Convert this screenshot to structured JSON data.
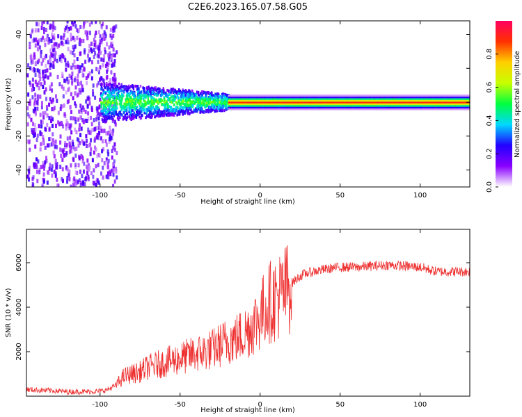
{
  "title": "C2E6.2023.165.07.58.G05",
  "chart_data": [
    {
      "type": "heatmap",
      "xlabel": "Height of straight line (km)",
      "ylabel": "Frequency (Hz)",
      "xlim": [
        -146,
        131
      ],
      "ylim": [
        -50,
        48
      ],
      "x_ticks": [
        -100,
        -50,
        0,
        50,
        100
      ],
      "y_ticks": [
        -40,
        -20,
        0,
        20,
        40
      ],
      "colorbar": {
        "label": "Normalized spectral amplitude",
        "range": [
          0,
          1
        ],
        "ticks": [
          "0.0",
          "0.2",
          "0.4",
          "0.6",
          "0.8"
        ],
        "colors": [
          "#ffffff",
          "#8a00ff",
          "#2200ff",
          "#00d8ff",
          "#00ff40",
          "#c8ff00",
          "#ffd000",
          "#ff3000",
          "#ff0060"
        ]
      },
      "description_regions": [
        {
          "x_range": [
            -146,
            -100
          ],
          "freq_spread": [
            -50,
            48
          ],
          "amplitude": 0.15
        },
        {
          "x_range": [
            -100,
            -20
          ],
          "freq_spread": [
            -12,
            10
          ],
          "amplitude": 0.35
        },
        {
          "x_range": [
            -20,
            131
          ],
          "freq_spread": [
            -4,
            4
          ],
          "amplitude": 0.9
        }
      ]
    },
    {
      "type": "line",
      "xlabel": "Height of straight line (km)",
      "ylabel": "SNR (10 * v/v)",
      "xlim": [
        -146,
        131
      ],
      "ylim": [
        0,
        7500
      ],
      "x_ticks": [
        -100,
        -50,
        0,
        50,
        100
      ],
      "y_ticks": [
        2000,
        4000,
        6000
      ],
      "series": [
        {
          "color": "#ee3030",
          "x": [
            -146,
            -130,
            -120,
            -110,
            -100,
            -95,
            -90,
            -85,
            -80,
            -75,
            -70,
            -65,
            -60,
            -55,
            -50,
            -45,
            -40,
            -35,
            -30,
            -25,
            -20,
            -15,
            -10,
            -5,
            0,
            5,
            10,
            15,
            20,
            25,
            30,
            40,
            50,
            60,
            70,
            80,
            90,
            100,
            105,
            110,
            120,
            131
          ],
          "y": [
            300,
            250,
            200,
            200,
            220,
            300,
            500,
            900,
            1000,
            1100,
            1300,
            1400,
            1500,
            1600,
            1700,
            1800,
            1900,
            2000,
            2100,
            2300,
            2500,
            2600,
            2800,
            3200,
            3600,
            4200,
            4400,
            4700,
            5100,
            5400,
            5550,
            5700,
            5800,
            5800,
            5850,
            5900,
            5850,
            5800,
            5700,
            5600,
            5600,
            5600
          ]
        }
      ]
    }
  ]
}
